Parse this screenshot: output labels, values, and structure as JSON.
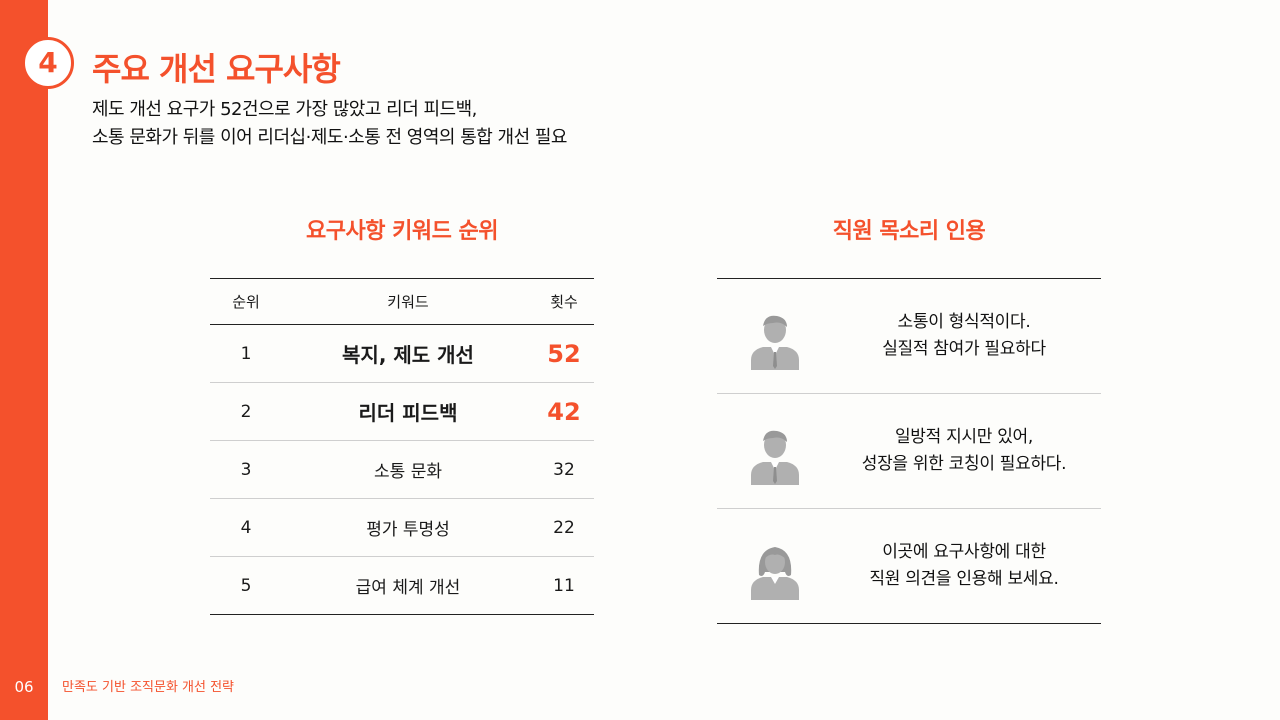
{
  "section": {
    "number": "4",
    "title": "주요 개선 요구사항"
  },
  "summary": [
    "제도 개선 요구가 52건으로 가장 많았고 리더 피드백,",
    "소통 문화가 뒤를 이어 리더십·제도·소통 전 영역의 통합 개선 필요"
  ],
  "ranking": {
    "title": "요구사항 키워드 순위",
    "headers": [
      "순위",
      "키워드",
      "횟수"
    ],
    "rows": [
      {
        "rank": "1",
        "keyword": "복지, 제도 개선",
        "count": "52",
        "highlight": true
      },
      {
        "rank": "2",
        "keyword": "리더 피드백",
        "count": "42",
        "highlight": true
      },
      {
        "rank": "3",
        "keyword": "소통 문화",
        "count": "32",
        "highlight": false
      },
      {
        "rank": "4",
        "keyword": "평가 투명성",
        "count": "22",
        "highlight": false
      },
      {
        "rank": "5",
        "keyword": "급여 체계 개선",
        "count": "11",
        "highlight": false
      }
    ]
  },
  "voices": {
    "title": "직원 목소리 인용",
    "items": [
      {
        "icon": "male-employee-icon",
        "lines": [
          "소통이 형식적이다.",
          "실질적 참여가 필요하다"
        ]
      },
      {
        "icon": "male-employee-icon",
        "lines": [
          "일방적 지시만 있어,",
          "성장을 위한 코칭이 필요하다."
        ]
      },
      {
        "icon": "female-employee-icon",
        "lines": [
          "이곳에 요구사항에 대한",
          "직원 의견을 인용해 보세요."
        ]
      }
    ]
  },
  "footer": {
    "page_number": "06",
    "doc_title": "만족도 기반 조직문화 개선 전략"
  },
  "colors": {
    "accent": "#f4512c",
    "icon_gray": "#b0b0b0"
  }
}
